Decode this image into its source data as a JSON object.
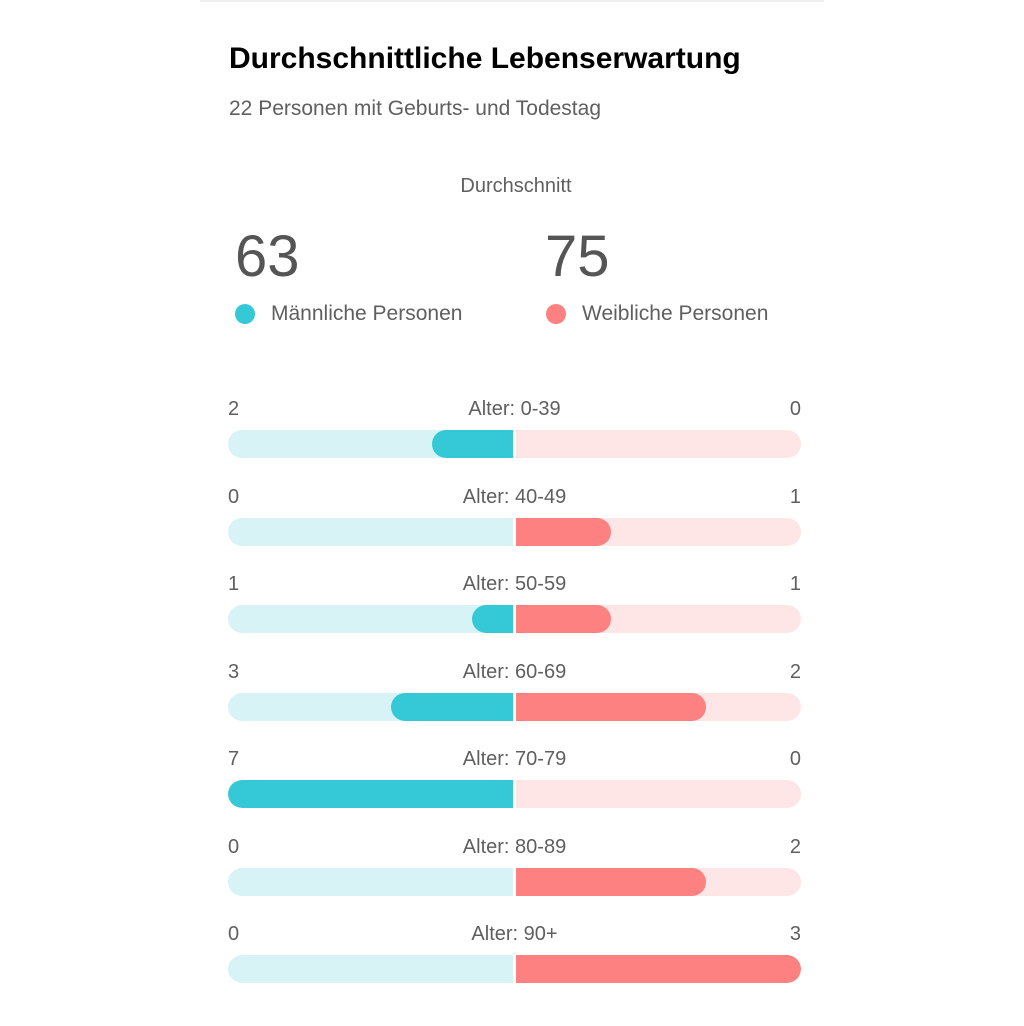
{
  "header": {
    "title": "Durchschnittliche Lebenserwartung",
    "subtitle": "22 Personen mit Geburts- und Todestag"
  },
  "average": {
    "label": "Durchschnitt",
    "male": {
      "value": "63",
      "label": "Männliche Personen",
      "color": "#35c8d6"
    },
    "female": {
      "value": "75",
      "label": "Weibliche Personen",
      "color": "#fd8180"
    }
  },
  "chart_data": {
    "type": "bar",
    "title": "Durchschnittliche Lebenserwartung",
    "subtitle": "22 Personen mit Geburts- und Todestag",
    "categories": [
      "Alter: 0-39",
      "Alter: 40-49",
      "Alter: 50-59",
      "Alter: 60-69",
      "Alter: 70-79",
      "Alter: 80-89",
      "Alter: 90+"
    ],
    "series": [
      {
        "name": "Männliche Personen",
        "values": [
          2,
          0,
          1,
          3,
          7,
          0,
          0
        ],
        "color": "#35c8d6",
        "track_color": "#d7f3f5"
      },
      {
        "name": "Weibliche Personen",
        "values": [
          0,
          1,
          1,
          2,
          0,
          2,
          3
        ],
        "color": "#fd8180",
        "track_color": "#ffe6e6"
      }
    ],
    "orientation": "diverging-horizontal",
    "scale": "each side normalized to its own maximum",
    "legend": "top"
  }
}
